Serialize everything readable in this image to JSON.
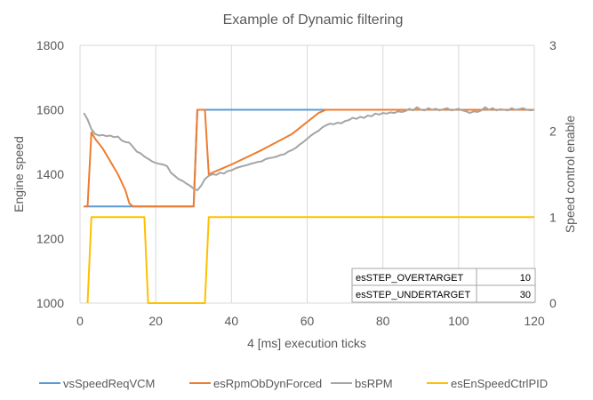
{
  "chart_data": {
    "type": "line",
    "title": "Example of Dynamic filtering",
    "xlabel": "4 [ms] execution ticks",
    "ylabel": "Engine speed",
    "y2label": "Speed control enable",
    "xlim": [
      0,
      120
    ],
    "ylim": [
      1000,
      1800
    ],
    "y2lim": [
      0,
      3
    ],
    "x_ticks": [
      0,
      20,
      40,
      60,
      80,
      100,
      120
    ],
    "y_ticks": [
      1000,
      1200,
      1400,
      1600,
      1800
    ],
    "y2_ticks": [
      0,
      1,
      2,
      3
    ],
    "grid": "vertical",
    "legend": "bottom",
    "series": [
      {
        "name": "vsSpeedReqVCM",
        "color": "#5B9BD5",
        "axis": "left",
        "points": [
          [
            1,
            1300
          ],
          [
            2,
            1300
          ],
          [
            3,
            1300
          ],
          [
            13,
            1300
          ],
          [
            30,
            1300
          ],
          [
            31,
            1600
          ],
          [
            35,
            1600
          ],
          [
            64,
            1600
          ],
          [
            120,
            1600
          ]
        ]
      },
      {
        "name": "esRpmObDynForced",
        "color": "#ED7D31",
        "axis": "left",
        "points": [
          [
            1,
            1300
          ],
          [
            2,
            1300
          ],
          [
            3,
            1530
          ],
          [
            4,
            1510
          ],
          [
            6,
            1480
          ],
          [
            8,
            1440
          ],
          [
            10,
            1400
          ],
          [
            12,
            1350
          ],
          [
            13,
            1310
          ],
          [
            14,
            1300
          ],
          [
            30,
            1300
          ],
          [
            31,
            1600
          ],
          [
            33,
            1600
          ],
          [
            34,
            1400
          ],
          [
            40,
            1430
          ],
          [
            48,
            1475
          ],
          [
            56,
            1525
          ],
          [
            63,
            1590
          ],
          [
            65,
            1600
          ],
          [
            120,
            1600
          ]
        ]
      },
      {
        "name": "bsRPM",
        "color": "#A5A5A5",
        "axis": "left",
        "points": [
          [
            1,
            1590
          ],
          [
            2,
            1570
          ],
          [
            3,
            1540
          ],
          [
            4,
            1525
          ],
          [
            5,
            1520
          ],
          [
            6,
            1522
          ],
          [
            7,
            1518
          ],
          [
            8,
            1520
          ],
          [
            9,
            1515
          ],
          [
            10,
            1517
          ],
          [
            11,
            1505
          ],
          [
            12,
            1500
          ],
          [
            13,
            1498
          ],
          [
            14,
            1485
          ],
          [
            15,
            1470
          ],
          [
            16,
            1465
          ],
          [
            17,
            1455
          ],
          [
            18,
            1448
          ],
          [
            19,
            1440
          ],
          [
            20,
            1435
          ],
          [
            21,
            1432
          ],
          [
            22,
            1430
          ],
          [
            23,
            1425
          ],
          [
            24,
            1405
          ],
          [
            25,
            1395
          ],
          [
            26,
            1385
          ],
          [
            27,
            1380
          ],
          [
            28,
            1372
          ],
          [
            29,
            1365
          ],
          [
            30,
            1355
          ],
          [
            31,
            1350
          ],
          [
            32,
            1365
          ],
          [
            33,
            1385
          ],
          [
            34,
            1395
          ],
          [
            35,
            1400
          ],
          [
            36,
            1398
          ],
          [
            37,
            1405
          ],
          [
            38,
            1402
          ],
          [
            39,
            1410
          ],
          [
            40,
            1412
          ],
          [
            41,
            1418
          ],
          [
            42,
            1422
          ],
          [
            43,
            1425
          ],
          [
            44,
            1428
          ],
          [
            45,
            1432
          ],
          [
            46,
            1435
          ],
          [
            47,
            1438
          ],
          [
            48,
            1440
          ],
          [
            49,
            1447
          ],
          [
            50,
            1450
          ],
          [
            51,
            1452
          ],
          [
            52,
            1455
          ],
          [
            53,
            1460
          ],
          [
            54,
            1462
          ],
          [
            55,
            1470
          ],
          [
            56,
            1475
          ],
          [
            57,
            1482
          ],
          [
            58,
            1492
          ],
          [
            59,
            1500
          ],
          [
            60,
            1510
          ],
          [
            61,
            1520
          ],
          [
            62,
            1528
          ],
          [
            63,
            1535
          ],
          [
            64,
            1545
          ],
          [
            65,
            1552
          ],
          [
            66,
            1557
          ],
          [
            67,
            1555
          ],
          [
            68,
            1560
          ],
          [
            69,
            1558
          ],
          [
            70,
            1565
          ],
          [
            71,
            1568
          ],
          [
            72,
            1575
          ],
          [
            73,
            1572
          ],
          [
            74,
            1578
          ],
          [
            75,
            1575
          ],
          [
            76,
            1582
          ],
          [
            77,
            1580
          ],
          [
            78,
            1588
          ],
          [
            79,
            1585
          ],
          [
            80,
            1590
          ],
          [
            81,
            1588
          ],
          [
            82,
            1592
          ],
          [
            83,
            1590
          ],
          [
            84,
            1595
          ],
          [
            85,
            1593
          ],
          [
            86,
            1596
          ],
          [
            87,
            1603
          ],
          [
            88,
            1598
          ],
          [
            89,
            1608
          ],
          [
            90,
            1600
          ],
          [
            91,
            1598
          ],
          [
            92,
            1605
          ],
          [
            93,
            1600
          ],
          [
            94,
            1603
          ],
          [
            95,
            1598
          ],
          [
            96,
            1602
          ],
          [
            97,
            1605
          ],
          [
            98,
            1598
          ],
          [
            99,
            1600
          ],
          [
            100,
            1603
          ],
          [
            101,
            1598
          ],
          [
            102,
            1595
          ],
          [
            103,
            1590
          ],
          [
            104,
            1595
          ],
          [
            105,
            1593
          ],
          [
            106,
            1598
          ],
          [
            107,
            1608
          ],
          [
            108,
            1600
          ],
          [
            109,
            1605
          ],
          [
            110,
            1598
          ],
          [
            111,
            1602
          ],
          [
            112,
            1600
          ],
          [
            113,
            1598
          ],
          [
            114,
            1605
          ],
          [
            115,
            1600
          ],
          [
            116,
            1602
          ],
          [
            117,
            1605
          ],
          [
            118,
            1600
          ],
          [
            119,
            1598
          ],
          [
            120,
            1600
          ]
        ]
      },
      {
        "name": "esEnSpeedCtrlPID",
        "color": "#FFC000",
        "axis": "right",
        "points": [
          [
            2,
            0
          ],
          [
            3,
            1
          ],
          [
            17,
            1
          ],
          [
            18,
            0
          ],
          [
            33,
            0
          ],
          [
            34,
            1
          ],
          [
            120,
            1
          ]
        ]
      }
    ],
    "annotation_table": [
      {
        "label": "esSTEP_OVERTARGET",
        "value": "10"
      },
      {
        "label": "esSTEP_UNDERTARGET",
        "value": "30"
      }
    ]
  }
}
